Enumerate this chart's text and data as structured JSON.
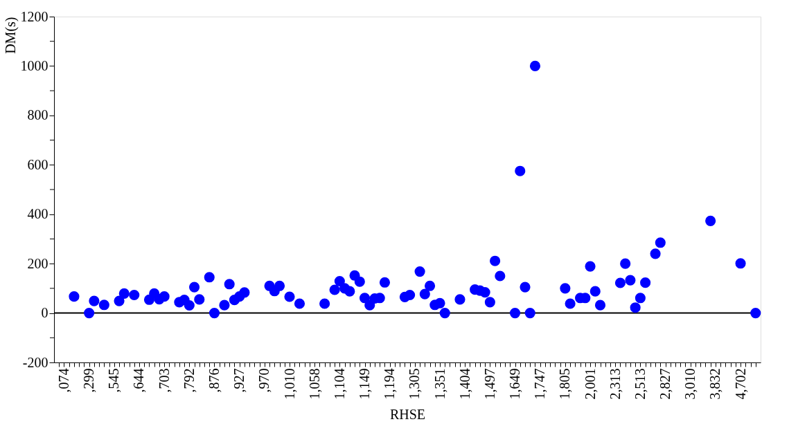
{
  "chart_data": {
    "type": "scatter",
    "xlabel": "RHSE",
    "ylabel": "DM(s)",
    "categories": [
      null,
      ",074",
      null,
      null,
      null,
      null,
      ",299",
      null,
      null,
      null,
      null,
      ",545",
      null,
      null,
      null,
      null,
      ",644",
      null,
      null,
      null,
      null,
      ",703",
      null,
      null,
      null,
      null,
      ",792",
      null,
      null,
      null,
      null,
      ",876",
      null,
      null,
      null,
      null,
      ",927",
      null,
      null,
      null,
      null,
      ",970",
      null,
      null,
      null,
      null,
      "1,010",
      null,
      null,
      null,
      null,
      "1,058",
      null,
      null,
      null,
      null,
      "1,104",
      null,
      null,
      null,
      null,
      "1,149",
      null,
      null,
      null,
      null,
      "1,194",
      null,
      null,
      null,
      null,
      "1,305",
      null,
      null,
      null,
      null,
      "1,351",
      null,
      null,
      null,
      null,
      "1,404",
      null,
      null,
      null,
      null,
      "1,497",
      null,
      null,
      null,
      null,
      "1,649",
      null,
      null,
      null,
      null,
      "1,747",
      null,
      null,
      null,
      null,
      "1,805",
      null,
      null,
      null,
      null,
      "2,001",
      null,
      null,
      null,
      null,
      "2,313",
      null,
      null,
      null,
      null,
      "2,513",
      null,
      null,
      null,
      null,
      "2,827",
      null,
      null,
      null,
      null,
      "3,010",
      null,
      null,
      null,
      null,
      "3,832",
      null,
      null,
      null,
      null,
      "4,702",
      null,
      null,
      null
    ],
    "series": [
      {
        "color": "#0000ff",
        "values": [
          null,
          null,
          null,
          67,
          null,
          null,
          0,
          49,
          null,
          33,
          null,
          null,
          49,
          79,
          null,
          73,
          null,
          null,
          54,
          79,
          56,
          67,
          null,
          null,
          44,
          53,
          31,
          105,
          55,
          null,
          145,
          0,
          null,
          32,
          117,
          53,
          67,
          83,
          null,
          null,
          null,
          null,
          110,
          89,
          110,
          null,
          66,
          null,
          38,
          null,
          null,
          null,
          null,
          38,
          null,
          94,
          129,
          100,
          88,
          152,
          127,
          61,
          32,
          59,
          61,
          124,
          null,
          null,
          null,
          65,
          73,
          null,
          168,
          77,
          110,
          33,
          40,
          0,
          null,
          null,
          55,
          null,
          null,
          95,
          91,
          84,
          44,
          211,
          150,
          null,
          null,
          0,
          575,
          105,
          0,
          1000,
          null,
          null,
          null,
          null,
          null,
          100,
          38,
          null,
          61,
          61,
          189,
          88,
          32,
          null,
          null,
          null,
          122,
          200,
          133,
          22,
          61,
          123,
          null,
          240,
          285,
          null,
          null,
          null,
          null,
          null,
          null,
          null,
          null,
          null,
          373,
          null,
          null,
          null,
          null,
          null,
          201,
          null,
          null,
          0
        ]
      }
    ],
    "ylim": [
      -200,
      1200
    ],
    "yticks": [
      -200,
      {
        "value": -100,
        "label": null
      },
      0,
      {
        "value": 100,
        "label": null
      },
      200,
      {
        "value": 300,
        "label": null
      },
      400,
      {
        "value": 500,
        "label": null
      },
      600,
      {
        "value": 700,
        "label": null
      },
      800,
      {
        "value": 900,
        "label": null
      },
      1000,
      {
        "value": 1100,
        "label": null
      },
      1200
    ],
    "ref_lines": [
      {
        "axis": "y",
        "value": 0,
        "color": "#000000"
      }
    ],
    "marker": "circle",
    "grid": false,
    "legend": false
  }
}
